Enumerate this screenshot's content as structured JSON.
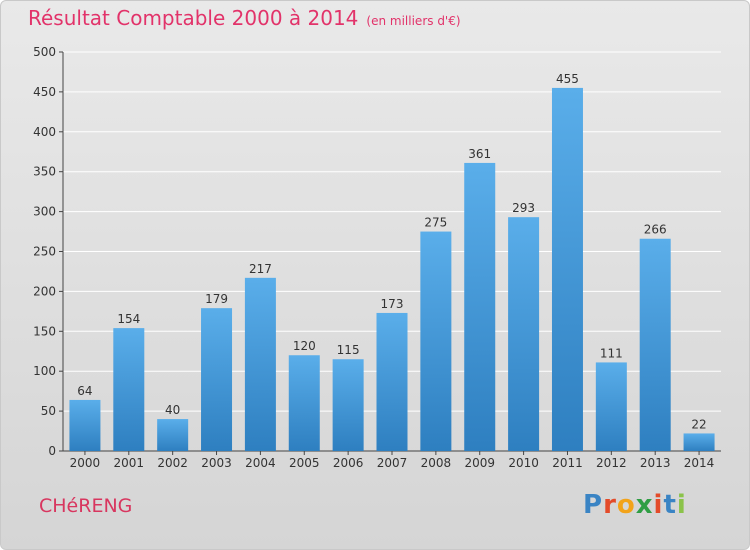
{
  "header": {
    "title": "Résultat Comptable 2000 à 2014",
    "unit": "(en milliers d'€)"
  },
  "footer": {
    "commune": "CHéRENG",
    "logo_letters": [
      "P",
      "r",
      "o",
      "x",
      "i",
      "t",
      "i"
    ],
    "logo_colors": [
      "#3a84c4",
      "#e34b2a",
      "#f2a31a",
      "#2f9e44",
      "#e34b2a",
      "#3a84c4",
      "#8bc34a"
    ]
  },
  "colors": {
    "title": "#e2336a",
    "bar_light": "#5aaeea",
    "bar_dark": "#2e7fc0",
    "grid": "#ffffff",
    "axis": "#444444"
  },
  "chart_data": {
    "type": "bar",
    "title": "Résultat Comptable 2000 à 2014",
    "subtitle": "(en milliers d'€)",
    "categories": [
      "2000",
      "2001",
      "2002",
      "2003",
      "2004",
      "2005",
      "2006",
      "2007",
      "2008",
      "2009",
      "2010",
      "2011",
      "2012",
      "2013",
      "2014"
    ],
    "values": [
      64,
      154,
      40,
      179,
      217,
      120,
      115,
      173,
      275,
      361,
      293,
      455,
      111,
      266,
      22
    ],
    "ylim": [
      0,
      500
    ],
    "yticks": [
      0,
      50,
      100,
      150,
      200,
      250,
      300,
      350,
      400,
      450,
      500
    ],
    "grid": true,
    "data_labels": true
  }
}
